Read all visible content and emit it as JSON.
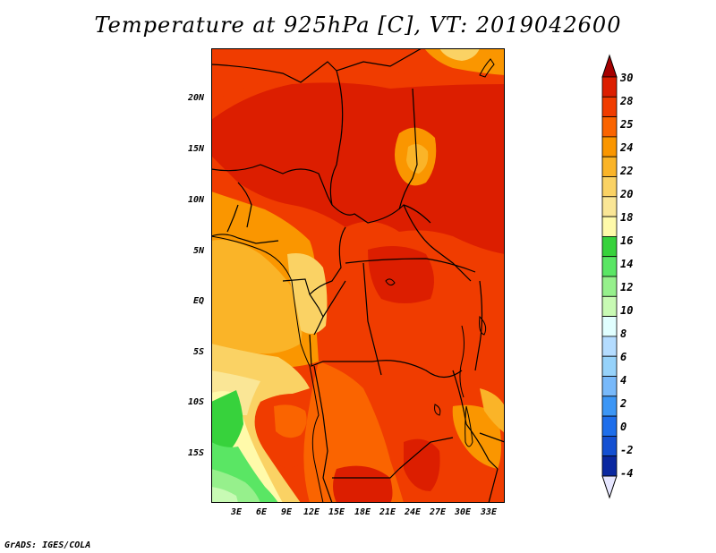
{
  "title": "Temperature at 925hPa [C], VT: 2019042600",
  "footer": "GrADS: IGES/COLA",
  "y_axis_labels": [
    "20N",
    "15N",
    "10N",
    "5N",
    "EQ",
    "5S",
    "10S",
    "15S"
  ],
  "x_axis_labels": [
    "3E",
    "6E",
    "9E",
    "12E",
    "15E",
    "18E",
    "21E",
    "24E",
    "27E",
    "30E",
    "33E"
  ],
  "colorbar": {
    "labels": [
      "30",
      "28",
      "25",
      "24",
      "22",
      "20",
      "18",
      "16",
      "14",
      "12",
      "10",
      "8",
      "6",
      "4",
      "2",
      "0",
      "-2",
      "-4"
    ],
    "colors": [
      "#a50000",
      "#dc1e00",
      "#f03c00",
      "#fa6400",
      "#fa9600",
      "#fab428",
      "#fad264",
      "#fae696",
      "#fffaaa",
      "#37d23c",
      "#5ae664",
      "#96f08c",
      "#c8fab4",
      "#e1ffff",
      "#b4dcff",
      "#96d2fa",
      "#78b9fa",
      "#3c96f5",
      "#1e6eeb",
      "#1450d2",
      "#0a28a0",
      "#e6e6ff"
    ]
  }
}
